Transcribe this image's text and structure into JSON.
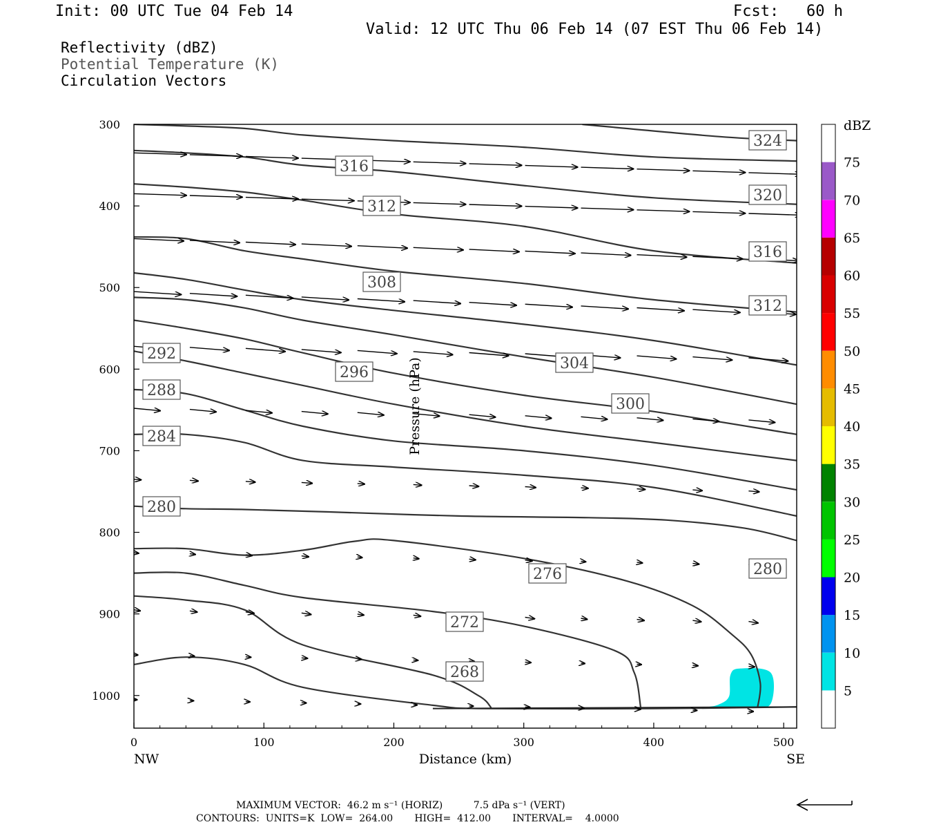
{
  "header": {
    "init": "Init: 00 UTC Tue 04 Feb 14",
    "fcst": "Fcst:   60 h",
    "valid": "Valid: 12 UTC Thu 06 Feb 14 (07 EST Thu 06 Feb 14)"
  },
  "fields": {
    "line1": "Reflectivity (dBZ)",
    "line2": "Potential Temperature (K)",
    "line3": "Circulation Vectors"
  },
  "chart_data": {
    "type": "cross-section",
    "xlabel": "Distance (km)",
    "ylabel": "Pressure (hPa)",
    "xlim": [
      0,
      510
    ],
    "ylim": [
      300,
      1040
    ],
    "x_ticks": [
      "0",
      "100",
      "200",
      "300",
      "400",
      "500"
    ],
    "y_ticks": [
      "300",
      "400",
      "500",
      "600",
      "700",
      "800",
      "900",
      "1000"
    ],
    "x_end_labels": {
      "left": "NW",
      "right": "SE"
    },
    "theta_contours": [
      {
        "value": 268,
        "label": "268",
        "points": [
          [
            0,
            962
          ],
          [
            40,
            953
          ],
          [
            85,
            962
          ],
          [
            130,
            990
          ],
          [
            230,
            1012
          ],
          [
            270,
            1016
          ],
          [
            400,
            1016
          ],
          [
            510,
            1014
          ]
        ]
      },
      {
        "value": 272,
        "label": "272",
        "points": [
          [
            0,
            878
          ],
          [
            40,
            883
          ],
          [
            85,
            895
          ],
          [
            130,
            938
          ],
          [
            230,
            975
          ],
          [
            265,
            1000
          ],
          [
            275,
            1015
          ]
        ]
      },
      {
        "value": 276,
        "label": "276",
        "points": [
          [
            0,
            850
          ],
          [
            40,
            850
          ],
          [
            85,
            865
          ],
          [
            130,
            880
          ],
          [
            230,
            897
          ],
          [
            300,
            915
          ],
          [
            370,
            945
          ],
          [
            385,
            972
          ],
          [
            390,
            1015
          ]
        ]
      },
      {
        "value": 280,
        "label": "280",
        "points": [
          [
            0,
            820
          ],
          [
            40,
            820
          ],
          [
            85,
            828
          ],
          [
            130,
            822
          ],
          [
            170,
            811
          ],
          [
            200,
            810
          ],
          [
            300,
            832
          ],
          [
            380,
            860
          ],
          [
            430,
            890
          ],
          [
            460,
            925
          ],
          [
            475,
            950
          ],
          [
            482,
            985
          ],
          [
            480,
            1014
          ]
        ]
      },
      {
        "value": 284,
        "label": "284",
        "points": [
          [
            0,
            768
          ],
          [
            40,
            771
          ],
          [
            85,
            772
          ],
          [
            150,
            775
          ],
          [
            250,
            780
          ],
          [
            350,
            782
          ],
          [
            410,
            785
          ],
          [
            470,
            795
          ],
          [
            510,
            810
          ]
        ]
      },
      {
        "value": 288,
        "label": "288",
        "points": [
          [
            0,
            680
          ],
          [
            40,
            680
          ],
          [
            85,
            690
          ],
          [
            130,
            712
          ],
          [
            200,
            720
          ],
          [
            300,
            730
          ],
          [
            400,
            745
          ],
          [
            510,
            780
          ]
        ]
      },
      {
        "value": 292,
        "label": "292",
        "points": [
          [
            0,
            625
          ],
          [
            40,
            630
          ],
          [
            85,
            650
          ],
          [
            130,
            670
          ],
          [
            200,
            688
          ],
          [
            300,
            700
          ],
          [
            400,
            718
          ],
          [
            510,
            748
          ]
        ]
      },
      {
        "value": 296,
        "label": "296",
        "points": [
          [
            0,
            578
          ],
          [
            40,
            590
          ],
          [
            85,
            605
          ],
          [
            130,
            620
          ],
          [
            200,
            643
          ],
          [
            300,
            670
          ],
          [
            400,
            690
          ],
          [
            510,
            712
          ]
        ]
      },
      {
        "value": 300,
        "label": "300",
        "points": [
          [
            0,
            540
          ],
          [
            40,
            550
          ],
          [
            85,
            563
          ],
          [
            130,
            580
          ],
          [
            200,
            605
          ],
          [
            300,
            632
          ],
          [
            400,
            652
          ],
          [
            510,
            680
          ]
        ]
      },
      {
        "value": 304,
        "label": "304",
        "points": [
          [
            0,
            512
          ],
          [
            40,
            515
          ],
          [
            85,
            525
          ],
          [
            130,
            540
          ],
          [
            200,
            558
          ],
          [
            300,
            585
          ],
          [
            400,
            610
          ],
          [
            510,
            643
          ]
        ]
      },
      {
        "value": 308,
        "label": "308",
        "points": [
          [
            0,
            482
          ],
          [
            40,
            490
          ],
          [
            85,
            503
          ],
          [
            130,
            515
          ],
          [
            200,
            528
          ],
          [
            300,
            545
          ],
          [
            400,
            565
          ],
          [
            510,
            595
          ]
        ]
      },
      {
        "value": 312,
        "label": "312",
        "points": [
          [
            0,
            438
          ],
          [
            40,
            440
          ],
          [
            85,
            455
          ],
          [
            130,
            465
          ],
          [
            200,
            480
          ],
          [
            300,
            495
          ],
          [
            400,
            515
          ],
          [
            510,
            530
          ]
        ]
      },
      {
        "value": 316,
        "label": "316",
        "points": [
          [
            0,
            373
          ],
          [
            40,
            377
          ],
          [
            85,
            383
          ],
          [
            130,
            393
          ],
          [
            200,
            410
          ],
          [
            300,
            425
          ],
          [
            400,
            455
          ],
          [
            510,
            470
          ]
        ]
      },
      {
        "value": 320,
        "label": "320",
        "points": [
          [
            0,
            332
          ],
          [
            40,
            335
          ],
          [
            85,
            340
          ],
          [
            130,
            350
          ],
          [
            200,
            358
          ],
          [
            300,
            375
          ],
          [
            400,
            390
          ],
          [
            510,
            398
          ]
        ]
      },
      {
        "value": 324,
        "label": "324",
        "points": [
          [
            0,
            300
          ],
          [
            40,
            302
          ],
          [
            85,
            305
          ],
          [
            130,
            313
          ],
          [
            200,
            320
          ],
          [
            300,
            328
          ],
          [
            400,
            340
          ],
          [
            510,
            345
          ]
        ]
      },
      {
        "value": 328,
        "label": "",
        "points": [
          [
            345,
            300
          ],
          [
            450,
            315
          ],
          [
            510,
            320
          ]
        ]
      }
    ],
    "contour_label_values": [
      "324",
      "320",
      "316",
      "312",
      "308",
      "304",
      "300",
      "296",
      "292",
      "288",
      "284",
      "280",
      "276",
      "272",
      "268",
      "316",
      "312",
      "280"
    ],
    "reflectivity_area": {
      "dbz_min": 5,
      "color": "#00e4e4"
    },
    "colorbar": {
      "unit": "dBZ",
      "levels": [
        "5",
        "10",
        "15",
        "20",
        "25",
        "30",
        "35",
        "40",
        "45",
        "50",
        "55",
        "60",
        "65",
        "70",
        "75"
      ],
      "colors": [
        "#ffffff",
        "#00e4e4",
        "#0093f0",
        "#0000ee",
        "#00ff00",
        "#00c400",
        "#008200",
        "#ffff00",
        "#e5bc00",
        "#ff8c00",
        "#ff0000",
        "#d80000",
        "#b50000",
        "#ff00ff",
        "#9a59c8",
        "#ffffff"
      ]
    }
  },
  "footer": {
    "line1": "MAXIMUM VECTOR:  46.2 m s⁻¹ (HORIZ)          7.5 dPa s⁻¹ (VERT)",
    "line2": "CONTOURS:  UNITS=K  LOW=  264.00       HIGH=  412.00       INTERVAL=    4.0000"
  }
}
